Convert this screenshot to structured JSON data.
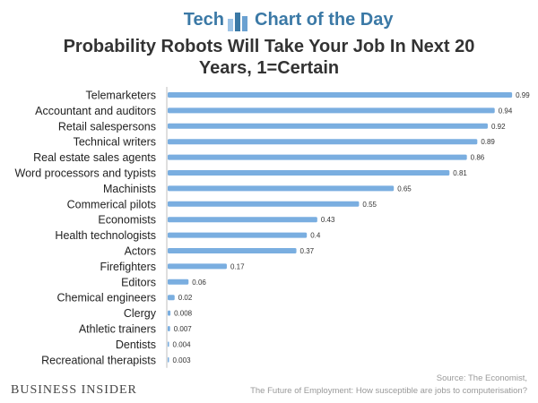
{
  "header": {
    "brand_left": "Tech",
    "brand_right": "Chart of the Day",
    "logo_icon": "bar-chart-logo-icon",
    "accent_color": "#3b79a6"
  },
  "footer": {
    "publisher": "BUSINESS INSIDER",
    "source_line1": "Source: The Economist,",
    "source_line2": "The Future of Employment: How susceptible are jobs to computerisation?"
  },
  "chart_data": {
    "type": "bar",
    "orientation": "horizontal",
    "title": "Probability Robots Will Take Your Job In Next 20 Years, 1=Certain",
    "title_lines": [
      "Probability Robots Will Take Your Job In Next 20",
      "Years, 1=Certain"
    ],
    "categories": [
      "Telemarketers",
      "Accountant and auditors",
      "Retail salespersons",
      "Technical writers",
      "Real estate sales agents",
      "Word processors and typists",
      "Machinists",
      "Commerical pilots",
      "Economists",
      "Health technologists",
      "Actors",
      "Firefighters",
      "Editors",
      "Chemical engineers",
      "Clergy",
      "Athletic trainers",
      "Dentists",
      "Recreational therapists"
    ],
    "values": [
      0.99,
      0.94,
      0.92,
      0.89,
      0.86,
      0.81,
      0.65,
      0.55,
      0.43,
      0.4,
      0.37,
      0.17,
      0.06,
      0.02,
      0.008,
      0.007,
      0.004,
      0.003
    ],
    "value_labels": [
      "0.99",
      "0.94",
      "0.92",
      "0.89",
      "0.86",
      "0.81",
      "0.65",
      "0.55",
      "0.43",
      "0.4",
      "0.37",
      "0.17",
      "0.06",
      "0.02",
      "0.008",
      "0.007",
      "0.004",
      "0.003"
    ],
    "xlim": [
      0,
      1
    ],
    "grid": false,
    "legend": "none",
    "bar_color": "#7aaee0"
  }
}
